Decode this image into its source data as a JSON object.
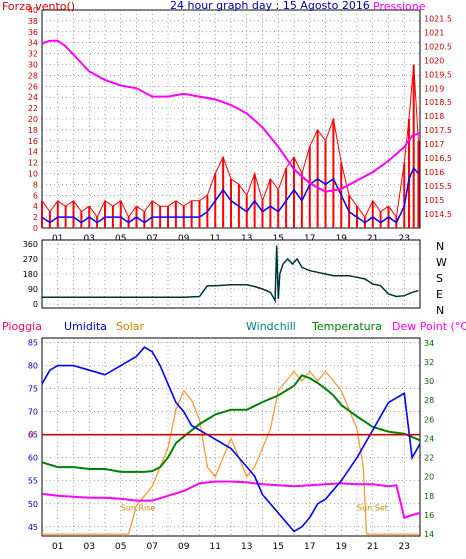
{
  "colors": {
    "wind_speed": "#ff0000",
    "wind_avg": "#0000ff",
    "pressure": "#ff00ff",
    "direction": "#003333",
    "humidity": "#0000ff",
    "solar": "#ff9933",
    "windchill": "#008080",
    "temperature": "#008000",
    "dewpoint": "#ff00ff",
    "rain": "#ff0066",
    "rain_line": "#cc0000",
    "axis_left": "#cc0000",
    "axis_hum": "#0000cc",
    "axis_temp": "#006600",
    "grid": "#666666"
  },
  "chart_data": [
    {
      "type": "line",
      "title": "24 hour graph day : 15 Agosto 2016",
      "left_label": "Forza vento()",
      "right_label": "Pressione",
      "x_ticks": [
        "01",
        "03",
        "05",
        "07",
        "09",
        "11",
        "13",
        "15",
        "17",
        "19",
        "21",
        "23"
      ],
      "y_left_ticks": [
        "0",
        "2",
        "4",
        "6",
        "8",
        "10",
        "12",
        "14",
        "16",
        "18",
        "20",
        "22",
        "24",
        "26",
        "28",
        "30",
        "32",
        "34",
        "36",
        "38",
        "40"
      ],
      "y_right_ticks": [
        "1014.5",
        "1015",
        "1015.5",
        "1016",
        "1016.5",
        "1017",
        "1017.5",
        "1018",
        "1018.5",
        "1019",
        "1019.5",
        "1020",
        "1020.5",
        "1021",
        "1021.5"
      ],
      "ylim_left": [
        0,
        40
      ],
      "ylim_right": [
        1014.0,
        1021.8
      ],
      "xlim": [
        0,
        24
      ],
      "series": [
        {
          "key": "gust",
          "x": [
            0,
            0.5,
            1,
            1.5,
            2,
            2.5,
            3,
            3.5,
            4,
            4.5,
            5,
            5.5,
            6,
            6.5,
            7,
            7.5,
            8,
            8.5,
            9,
            9.5,
            10,
            10.5,
            11,
            11.5,
            12,
            12.5,
            13,
            13.5,
            14,
            14.5,
            15,
            15.5,
            16,
            16.5,
            17,
            17.5,
            18,
            18.5,
            19,
            19.5,
            20,
            20.5,
            21,
            21.5,
            22,
            22.5,
            23,
            23.3,
            23.6,
            23.9
          ],
          "y": [
            5,
            3,
            5,
            4,
            5,
            3,
            4,
            2,
            5,
            4,
            5,
            2,
            4,
            3,
            5,
            4,
            4,
            5,
            4,
            5,
            5,
            6,
            10,
            13,
            9,
            8,
            6,
            10,
            5,
            9,
            7,
            11,
            13,
            10,
            15,
            18,
            16,
            20,
            12,
            6,
            4,
            2,
            5,
            3,
            4,
            2,
            12,
            20,
            30,
            16
          ]
        },
        {
          "key": "avg",
          "x": [
            0,
            0.5,
            1,
            1.5,
            2,
            2.5,
            3,
            3.5,
            4,
            4.5,
            5,
            5.5,
            6,
            6.5,
            7,
            7.5,
            8,
            8.5,
            9,
            9.5,
            10,
            10.5,
            11,
            11.5,
            12,
            12.5,
            13,
            13.5,
            14,
            14.5,
            15,
            15.5,
            16,
            16.5,
            17,
            17.5,
            18,
            18.5,
            19,
            19.5,
            20,
            20.5,
            21,
            21.5,
            22,
            22.5,
            23,
            23.3,
            23.6,
            23.9
          ],
          "y": [
            2,
            1,
            2,
            2,
            2,
            1,
            2,
            1,
            2,
            2,
            2,
            1,
            2,
            1,
            2,
            2,
            2,
            2,
            2,
            2,
            2,
            3,
            5,
            7,
            5,
            4,
            3,
            5,
            3,
            4,
            3,
            5,
            7,
            5,
            8,
            9,
            8,
            9,
            6,
            3,
            2,
            1,
            2,
            1,
            2,
            1,
            4,
            9,
            11,
            10
          ]
        },
        {
          "key": "pressure",
          "x": [
            0,
            0.5,
            1,
            1.5,
            2,
            3,
            4,
            5,
            6,
            7,
            8,
            9,
            10,
            11,
            12,
            13,
            14,
            15,
            16,
            17,
            18,
            19,
            20,
            21,
            22,
            23,
            23.5,
            24
          ],
          "y": [
            1020.6,
            1020.7,
            1020.7,
            1020.5,
            1020.2,
            1019.6,
            1019.3,
            1019.1,
            1019.0,
            1018.7,
            1018.7,
            1018.8,
            1018.7,
            1018.6,
            1018.4,
            1018.1,
            1017.6,
            1016.9,
            1016.1,
            1015.6,
            1015.3,
            1015.4,
            1015.7,
            1016.0,
            1016.4,
            1016.9,
            1017.3,
            1017.4
          ]
        }
      ]
    },
    {
      "type": "line",
      "right_labels": [
        "N",
        "W",
        "S",
        "E",
        "N"
      ],
      "y_ticks": [
        "0",
        "90",
        "180",
        "270",
        "360"
      ],
      "ylim": [
        0,
        360
      ],
      "x": [
        0,
        2,
        4,
        6,
        8,
        9,
        10,
        10.5,
        11,
        12,
        13,
        13.5,
        14,
        14.5,
        14.8,
        14.9,
        15.0,
        15.1,
        15.3,
        15.6,
        15.9,
        16.2,
        16.5,
        17,
        17.5,
        18,
        18.5,
        19,
        19.5,
        20,
        20.5,
        21,
        21.5,
        22,
        22.5,
        23,
        23.5,
        23.9
      ],
      "y": [
        40,
        40,
        40,
        40,
        40,
        40,
        45,
        110,
        110,
        115,
        115,
        105,
        90,
        70,
        20,
        350,
        30,
        180,
        240,
        270,
        240,
        270,
        220,
        200,
        190,
        180,
        170,
        170,
        170,
        160,
        150,
        120,
        110,
        60,
        45,
        50,
        70,
        80
      ]
    },
    {
      "type": "line",
      "legend": [
        "Pioggia",
        "Umidita",
        "Solar",
        "Windchill",
        "Temperatura",
        "Dew Point (°C)"
      ],
      "left_ticks": [
        "45",
        "50",
        "55",
        "60",
        "65",
        "70",
        "75",
        "80",
        "85"
      ],
      "right_ticks": [
        "14",
        "16",
        "18",
        "20",
        "22",
        "24",
        "26",
        "28",
        "30",
        "32",
        "34"
      ],
      "rain_zero_label": "0",
      "ylim_left": [
        43,
        86
      ],
      "ylim_right": [
        13.8,
        34.5
      ],
      "annotations": [
        {
          "text": "Sun Rise",
          "x": 5.0,
          "y": 48.5
        },
        {
          "text": "Sun Set",
          "x": 20.0,
          "y": 48.5
        }
      ],
      "series": [
        {
          "key": "humidity",
          "x": [
            0,
            0.5,
            1,
            2,
            3,
            4,
            5,
            6,
            6.5,
            7,
            7.5,
            8,
            8.5,
            9,
            9.5,
            10,
            10.5,
            11,
            12,
            13,
            13.5,
            14,
            14.5,
            15,
            15.5,
            16,
            16.5,
            17,
            17.5,
            18,
            19,
            20,
            20.5,
            21,
            21.5,
            22,
            22.5,
            23,
            23.5,
            24
          ],
          "y": [
            76,
            79,
            80,
            80,
            79,
            78,
            80,
            82,
            84,
            83,
            80,
            76,
            72,
            70,
            67,
            66,
            65,
            64,
            62,
            58,
            56,
            52,
            50,
            48,
            46,
            44,
            45,
            47,
            50,
            51,
            55,
            60,
            63,
            66,
            69,
            72,
            73,
            74,
            60,
            63
          ]
        },
        {
          "key": "temperature",
          "x": [
            0,
            1,
            2,
            3,
            4,
            5,
            6,
            6.5,
            7,
            7.5,
            8,
            8.5,
            9,
            10,
            11,
            12,
            13,
            14,
            15,
            16,
            16.5,
            17,
            17.5,
            18,
            18.5,
            19,
            20,
            21,
            22,
            23,
            24
          ],
          "y": [
            21.5,
            21,
            21,
            20.8,
            20.8,
            20.5,
            20.5,
            20.5,
            20.6,
            21,
            22,
            23.5,
            24.2,
            25.5,
            26.5,
            27,
            27,
            27.8,
            28.5,
            29.5,
            30.6,
            30.3,
            29.8,
            29.2,
            28.5,
            27.5,
            26.3,
            25.2,
            24.7,
            24.5,
            23.8
          ]
        },
        {
          "key": "dewpoint",
          "x": [
            0,
            1,
            2,
            3,
            4,
            5,
            6,
            7,
            8,
            9,
            10,
            11,
            12,
            13,
            14,
            15,
            16,
            17,
            18,
            19,
            20,
            21,
            22,
            22.5,
            23,
            23.5,
            24
          ],
          "y": [
            18.2,
            18,
            17.9,
            17.8,
            17.8,
            17.7,
            17.5,
            17.5,
            18,
            18.5,
            19.3,
            19.5,
            19.5,
            19.4,
            19.2,
            19.1,
            19.0,
            19.1,
            19.2,
            19.3,
            19.2,
            19.2,
            19.0,
            19.1,
            15.7,
            16.0,
            16.2
          ]
        },
        {
          "key": "solar",
          "x": [
            0,
            5.5,
            6,
            6.5,
            7,
            7.5,
            8,
            8.5,
            9,
            9.5,
            10,
            10.5,
            11,
            11.5,
            12,
            12.5,
            13,
            13.5,
            14,
            14.5,
            15,
            15.5,
            16,
            16.5,
            17,
            17.5,
            18,
            18.5,
            19,
            19.5,
            20,
            20.4,
            20.6,
            21,
            24
          ],
          "y": [
            14,
            14,
            17,
            18,
            19,
            21,
            23,
            27,
            29,
            28,
            26,
            21,
            20,
            22,
            24,
            22,
            20,
            21,
            23,
            25,
            29,
            30,
            31,
            30,
            31,
            30,
            31,
            30,
            29,
            27,
            25,
            21,
            14,
            14,
            14
          ]
        }
      ]
    }
  ]
}
